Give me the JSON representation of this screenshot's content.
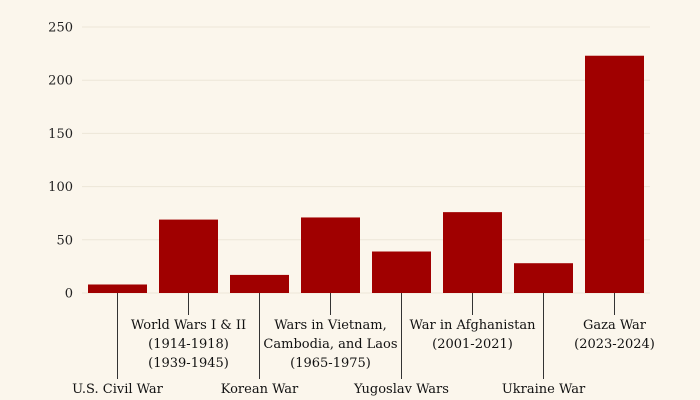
{
  "chart_data": {
    "type": "bar",
    "title": "",
    "xlabel": "",
    "ylabel": "",
    "ylim": [
      0,
      250
    ],
    "yticks": [
      0,
      50,
      100,
      150,
      200,
      250
    ],
    "grid": true,
    "bar_color": "#a00000",
    "background": "#fbf6ec",
    "categories": [
      [
        "U.S. Civil War"
      ],
      [
        "World Wars I & II",
        "(1914-1918)",
        "(1939-1945)"
      ],
      [
        "Korean War"
      ],
      [
        "Wars in Vietnam,",
        "Cambodia, and Laos",
        "(1965-1975)"
      ],
      [
        "Yugoslav Wars"
      ],
      [
        "War in Afghanistan",
        "(2001-2021)"
      ],
      [
        "Ukraine War"
      ],
      [
        "Gaza War",
        "(2023-2024)"
      ]
    ],
    "values": [
      8,
      69,
      17,
      71,
      39,
      76,
      28,
      223
    ]
  }
}
